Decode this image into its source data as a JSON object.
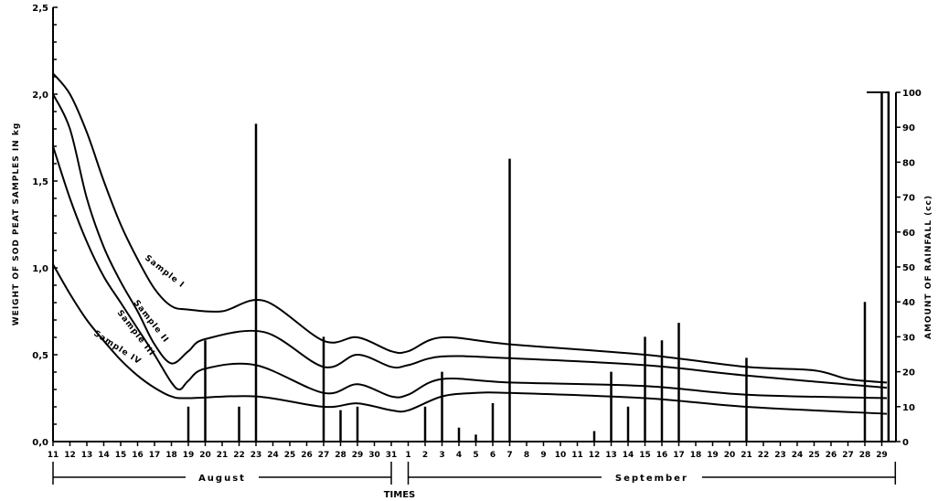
{
  "chart_data": {
    "type": "line",
    "title": "",
    "xlabel": "TIMES",
    "ylabel": "WEIGHT OF SOD PEAT SAMPLES IN kg",
    "y2label": "AMOUNT OF RAINFALL (cc)",
    "ylim": [
      0,
      2.5
    ],
    "y2lim": [
      0,
      100
    ],
    "y_ticks": [
      "0,0",
      "0,5",
      "1,0",
      "1,5",
      "2,0",
      "2,5"
    ],
    "y_tick_values": [
      0,
      0.5,
      1.0,
      1.5,
      2.0,
      2.5
    ],
    "y2_ticks": [
      "0",
      "10",
      "20",
      "30",
      "40",
      "50",
      "60",
      "70",
      "80",
      "90",
      "100"
    ],
    "x_tick_labels": [
      "11",
      "12",
      "13",
      "14",
      "15",
      "16",
      "17",
      "18",
      "19",
      "20",
      "21",
      "22",
      "23",
      "24",
      "25",
      "26",
      "27",
      "28",
      "29",
      "30",
      "31",
      "1",
      "2",
      "3",
      "4",
      "5",
      "6",
      "7",
      "8",
      "9",
      "10",
      "11",
      "12",
      "13",
      "14",
      "15",
      "16",
      "17",
      "18",
      "19",
      "20",
      "21",
      "22",
      "23",
      "24",
      "25",
      "26",
      "27",
      "28",
      "29"
    ],
    "months": [
      {
        "label": "August",
        "from": 0,
        "to": 20
      },
      {
        "label": "September",
        "from": 21,
        "to": 49.8
      }
    ],
    "series": [
      {
        "name": "Sample I",
        "points": [
          [
            0,
            2.12
          ],
          [
            1,
            2.0
          ],
          [
            2,
            1.78
          ],
          [
            3,
            1.5
          ],
          [
            4,
            1.25
          ],
          [
            5,
            1.05
          ],
          [
            6,
            0.88
          ],
          [
            7,
            0.78
          ],
          [
            8,
            0.76
          ],
          [
            10,
            0.75
          ],
          [
            12.5,
            0.81
          ],
          [
            16,
            0.58
          ],
          [
            18,
            0.6
          ],
          [
            20,
            0.52
          ],
          [
            21,
            0.52
          ],
          [
            23,
            0.6
          ],
          [
            27,
            0.56
          ],
          [
            35,
            0.5
          ],
          [
            41,
            0.43
          ],
          [
            45,
            0.41
          ],
          [
            47,
            0.36
          ],
          [
            49.3,
            0.34
          ]
        ]
      },
      {
        "name": "Sample II",
        "points": [
          [
            0,
            2.0
          ],
          [
            1,
            1.8
          ],
          [
            2,
            1.4
          ],
          [
            3,
            1.12
          ],
          [
            4,
            0.92
          ],
          [
            5,
            0.75
          ],
          [
            6,
            0.56
          ],
          [
            7,
            0.45
          ],
          [
            8,
            0.52
          ],
          [
            9,
            0.59
          ],
          [
            12.5,
            0.63
          ],
          [
            16,
            0.43
          ],
          [
            18,
            0.5
          ],
          [
            20,
            0.43
          ],
          [
            21,
            0.44
          ],
          [
            23,
            0.49
          ],
          [
            27,
            0.48
          ],
          [
            35,
            0.44
          ],
          [
            41,
            0.38
          ],
          [
            49.3,
            0.31
          ]
        ]
      },
      {
        "name": "Sample III",
        "points": [
          [
            0,
            1.7
          ],
          [
            1,
            1.4
          ],
          [
            2,
            1.15
          ],
          [
            3,
            0.95
          ],
          [
            4,
            0.8
          ],
          [
            5,
            0.65
          ],
          [
            6,
            0.5
          ],
          [
            7,
            0.34
          ],
          [
            7.5,
            0.3
          ],
          [
            8,
            0.35
          ],
          [
            9,
            0.42
          ],
          [
            12,
            0.44
          ],
          [
            16,
            0.28
          ],
          [
            18,
            0.33
          ],
          [
            20,
            0.26
          ],
          [
            21,
            0.27
          ],
          [
            23,
            0.36
          ],
          [
            27,
            0.34
          ],
          [
            35,
            0.32
          ],
          [
            41,
            0.27
          ],
          [
            49.3,
            0.25
          ]
        ]
      },
      {
        "name": "Sample IV",
        "points": [
          [
            0,
            1.02
          ],
          [
            1,
            0.85
          ],
          [
            2,
            0.7
          ],
          [
            3,
            0.58
          ],
          [
            4,
            0.47
          ],
          [
            5,
            0.38
          ],
          [
            6,
            0.31
          ],
          [
            7,
            0.26
          ],
          [
            8,
            0.25
          ],
          [
            12,
            0.26
          ],
          [
            16,
            0.2
          ],
          [
            18,
            0.22
          ],
          [
            20,
            0.18
          ],
          [
            21,
            0.18
          ],
          [
            23,
            0.26
          ],
          [
            25,
            0.28
          ],
          [
            27,
            0.28
          ],
          [
            35,
            0.25
          ],
          [
            41,
            0.2
          ],
          [
            49.3,
            0.16
          ]
        ]
      }
    ],
    "rainfall": {
      "bars": [
        [
          8,
          10
        ],
        [
          9,
          29
        ],
        [
          11,
          10
        ],
        [
          12,
          91
        ],
        [
          16,
          30
        ],
        [
          17,
          9
        ],
        [
          18,
          10
        ],
        [
          22,
          10
        ],
        [
          23,
          20
        ],
        [
          24,
          4
        ],
        [
          25,
          2
        ],
        [
          26,
          11
        ],
        [
          27,
          81
        ],
        [
          32,
          3
        ],
        [
          33,
          20
        ],
        [
          34,
          10
        ],
        [
          35,
          30
        ],
        [
          36,
          29
        ],
        [
          37,
          34
        ],
        [
          41,
          24
        ],
        [
          48,
          40
        ],
        [
          49,
          100
        ],
        [
          49.4,
          100
        ]
      ]
    }
  }
}
